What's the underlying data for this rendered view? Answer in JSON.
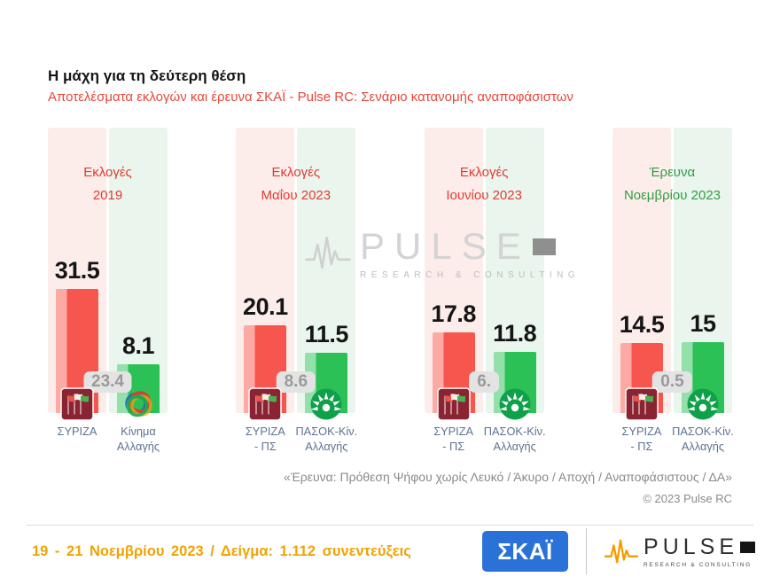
{
  "header": {
    "title": "Η μάχη για τη δεύτερη θέση",
    "subtitle": "Αποτελέσματα εκλογών και έρευνα ΣΚΑΪ - Pulse RC: Σενάριο κατανομής αναποφάσιστων"
  },
  "chart_data": {
    "type": "bar",
    "title": "Η μάχη για τη δεύτερη θέση",
    "ylim": [
      0,
      35
    ],
    "grid": false,
    "value_labels_position": "above-bars",
    "categories": [
      "Εκλογές 2019",
      "Εκλογές Μαΐου 2023",
      "Εκλογές Ιουνίου 2023",
      "Έρευνα Νοεμβρίου 2023"
    ],
    "series": [
      {
        "name": "ΣΥΡΙΖΑ",
        "values": [
          31.5,
          20.1,
          17.8,
          14.5
        ]
      },
      {
        "name": "ΠΑΣΟΚ - Κίνημα Αλλαγής",
        "values": [
          8.1,
          11.5,
          11.8,
          15
        ]
      }
    ],
    "gap_labels": [
      "23.4",
      "8.6",
      "6.",
      "0.5"
    ],
    "series_colors": {
      "syriza": {
        "main": "#f7564e",
        "light": "#fdaaa4"
      },
      "pasok": {
        "main": "#2bc156",
        "light": "#93e0ab"
      }
    },
    "band_colors": {
      "syriza": "#fcedeb",
      "pasok": "#e9f5ed"
    },
    "groups": [
      {
        "period_lines": [
          "Εκλογές",
          "2019"
        ],
        "period_color": "#e23b30",
        "gap_label": "23.4",
        "bars": [
          {
            "party": "ΣΥΡΙΖΑ",
            "value": 31.5,
            "value_label": "31.5",
            "series": "syriza",
            "logo": "syriza-flag-logo",
            "label_lines": [
              "ΣΥΡΙΖΑ"
            ]
          },
          {
            "party": "Κίνημα Αλλαγής",
            "value": 8.1,
            "value_label": "8.1",
            "series": "pasok",
            "logo": "kinima-allagis-logo",
            "label_lines": [
              "Κίνημα",
              "Αλλαγής"
            ]
          }
        ]
      },
      {
        "period_lines": [
          "Εκλογές",
          "Μαΐου 2023"
        ],
        "period_color": "#e23b30",
        "gap_label": "8.6",
        "bars": [
          {
            "party": "ΣΥΡΙΖΑ - ΠΣ",
            "value": 20.1,
            "value_label": "20.1",
            "series": "syriza",
            "logo": "syriza-flag-logo",
            "label_lines": [
              "ΣΥΡΙΖΑ",
              "- ΠΣ"
            ]
          },
          {
            "party": "ΠΑΣΟΚ-Κίν. Αλλαγής",
            "value": 11.5,
            "value_label": "11.5",
            "series": "pasok",
            "logo": "pasok-sun-logo",
            "label_lines": [
              "ΠΑΣΟΚ-Κίν.",
              "Αλλαγής"
            ]
          }
        ]
      },
      {
        "period_lines": [
          "Εκλογές",
          "Ιουνίου 2023"
        ],
        "period_color": "#e23b30",
        "gap_label": "6.",
        "bars": [
          {
            "party": "ΣΥΡΙΖΑ - ΠΣ",
            "value": 17.8,
            "value_label": "17.8",
            "series": "syriza",
            "logo": "syriza-flag-logo",
            "label_lines": [
              "ΣΥΡΙΖΑ",
              "- ΠΣ"
            ]
          },
          {
            "party": "ΠΑΣΟΚ-Κίν. Αλλαγής",
            "value": 11.8,
            "value_label": "11.8",
            "series": "pasok",
            "logo": "pasok-sun-logo",
            "label_lines": [
              "ΠΑΣΟΚ-Κίν.",
              "Αλλαγής"
            ]
          }
        ]
      },
      {
        "period_lines": [
          "Έρευνα",
          "Νοεμβρίου 2023"
        ],
        "period_color": "#2f9e41",
        "gap_label": "0.5",
        "bars": [
          {
            "party": "ΣΥΡΙΖΑ - ΠΣ",
            "value": 14.5,
            "value_label": "14.5",
            "series": "syriza",
            "logo": "syriza-flag-logo",
            "label_lines": [
              "ΣΥΡΙΖΑ",
              "- ΠΣ"
            ]
          },
          {
            "party": "ΠΑΣΟΚ-Κίν. Αλλαγής",
            "value": 15,
            "value_label": "15",
            "series": "pasok",
            "logo": "pasok-sun-logo",
            "label_lines": [
              "ΠΑΣΟΚ-Κίν.",
              "Αλλαγής"
            ]
          }
        ]
      }
    ]
  },
  "watermark": {
    "name": "PULSE",
    "tagline": "RESEARCH & CONSULTING"
  },
  "notes": {
    "methodology": "«Έρευνα: Πρόθεση Ψήφου χωρίς Λευκό / Άκυρο / Αποχή / Αναποφάσιστους / ΔΑ»",
    "copyright": "© 2023 Pulse RC"
  },
  "footer": {
    "fieldwork": "19 - 21 Νοεμβρίου 2023 / Δείγμα: 1.112 συνεντεύξεις",
    "skai_logo_text": "ΣΚΑΪ",
    "pulse_logo_text": "PULSE",
    "pulse_logo_tagline": "RESEARCH & CONSULTING"
  }
}
